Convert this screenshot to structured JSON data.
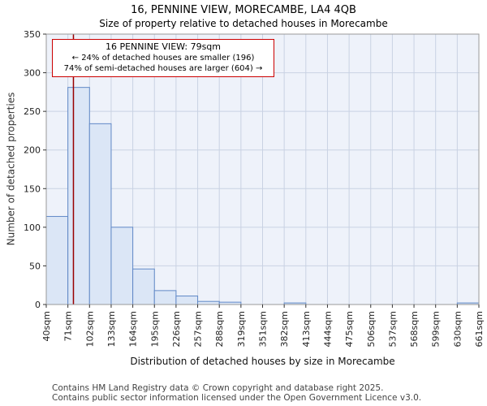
{
  "page": {
    "title": "16, PENNINE VIEW, MORECAMBE, LA4 4QB",
    "subtitle": "Size of property relative to detached houses in Morecambe"
  },
  "chart_data": {
    "type": "bar",
    "title": "16, PENNINE VIEW, MORECAMBE, LA4 4QB",
    "subtitle": "Size of property relative to detached houses in Morecambe",
    "xlabel": "Distribution of detached houses by size in Morecambe",
    "ylabel": "Number of detached properties",
    "ylim": [
      0,
      350
    ],
    "ytick_step": 50,
    "bin_edges_sqm": [
      40,
      71,
      102,
      133,
      164,
      195,
      226,
      257,
      288,
      319,
      351,
      382,
      413,
      444,
      475,
      506,
      537,
      568,
      599,
      630,
      661
    ],
    "tick_labels": [
      "40sqm",
      "71sqm",
      "102sqm",
      "133sqm",
      "164sqm",
      "195sqm",
      "226sqm",
      "257sqm",
      "288sqm",
      "319sqm",
      "351sqm",
      "382sqm",
      "413sqm",
      "444sqm",
      "475sqm",
      "506sqm",
      "537sqm",
      "568sqm",
      "599sqm",
      "630sqm",
      "661sqm"
    ],
    "values": [
      114,
      281,
      234,
      100,
      46,
      18,
      11,
      4,
      3,
      0,
      0,
      2,
      0,
      0,
      0,
      0,
      0,
      0,
      0,
      2
    ],
    "marker_value_sqm": 79,
    "marker_color": "#990000",
    "bar_fill": "#dbe6f6",
    "bar_stroke": "#6189c7",
    "plot_bg": "#eef2fa",
    "grid_color": "#c9d2e3",
    "axis_border_color": "#999999",
    "legend": "none",
    "grid": "on",
    "annotation": {
      "line1": "16 PENNINE VIEW: 79sqm",
      "line2": "← 24% of detached houses are smaller (196)",
      "line3": "74% of semi-detached houses are larger (604) →"
    }
  },
  "footer": {
    "line1": "Contains HM Land Registry data © Crown copyright and database right 2025.",
    "line2": "Contains public sector information licensed under the Open Government Licence v3.0."
  }
}
